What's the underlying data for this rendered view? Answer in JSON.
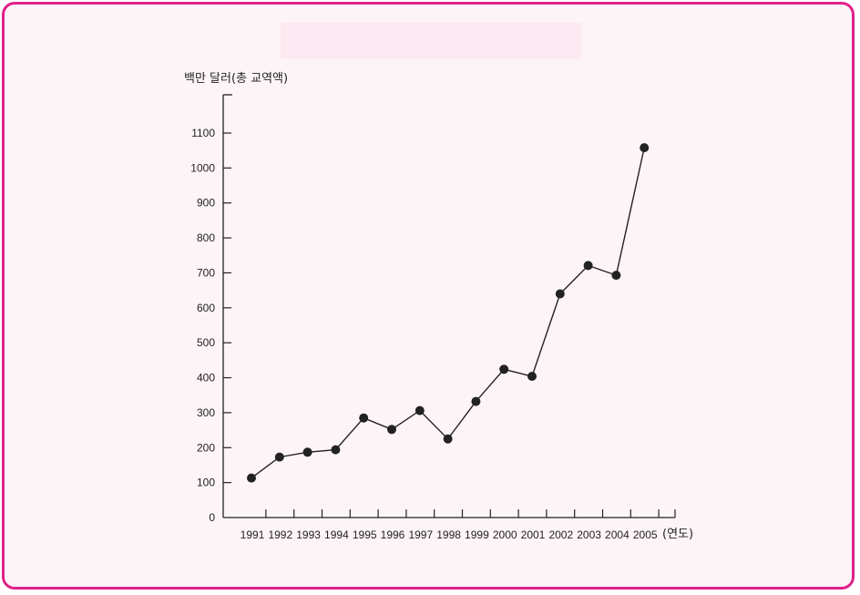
{
  "colors": {
    "border": "#e0218a",
    "background": "#fdf4f8",
    "title_band": "#fde9f1",
    "line": "#222222",
    "point": "#222222"
  },
  "chart_data": {
    "type": "line",
    "title": "",
    "ylabel": "백만 달러(총 교역액)",
    "xlabel": "(연도)",
    "ylim": [
      0,
      1100
    ],
    "yticks": [
      0,
      100,
      200,
      300,
      400,
      500,
      600,
      700,
      800,
      900,
      1000,
      1100
    ],
    "categories": [
      "1991",
      "1992",
      "1993",
      "1994",
      "1995",
      "1996",
      "1997",
      "1998",
      "1999",
      "2000",
      "2001",
      "2002",
      "2003",
      "2004",
      "2005"
    ],
    "series": [
      {
        "values": [
          113,
          173,
          187,
          194,
          285,
          252,
          306,
          225,
          332,
          424,
          404,
          640,
          721,
          693,
          1058
        ]
      }
    ],
    "grid": false,
    "legend": "none"
  }
}
